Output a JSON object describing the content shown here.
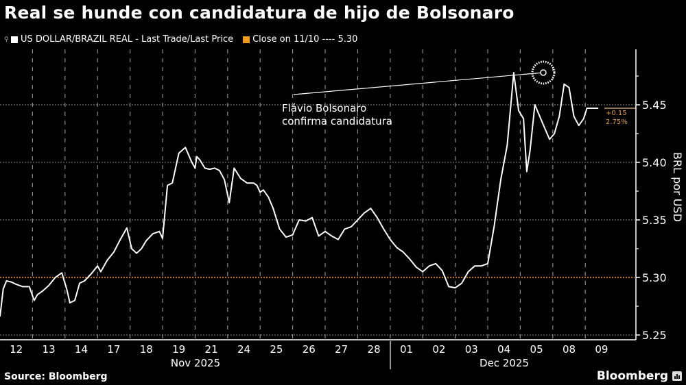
{
  "title": "Real se hunde con candidatura de hijo de Bolsonaro",
  "legend": {
    "series_label": "US DOLLAR/BRAZIL REAL - Last Trade/Last Price",
    "series_color": "#ffffff",
    "reference_label": "Close on 11/10 ---- 5.30",
    "reference_color": "#f29b1d"
  },
  "annotation": {
    "line1": "Flávio Bolsonaro",
    "line2": "confirma candidatura"
  },
  "change_badge": {
    "abs": "+0.15",
    "pct": "2.75%"
  },
  "y_axis": {
    "label": "BRL por USD",
    "ticks": [
      "5.45",
      "5.40",
      "5.35",
      "5.30",
      "5.25"
    ]
  },
  "x_axis": {
    "days": [
      "12",
      "13",
      "14",
      "17",
      "18",
      "19",
      "21",
      "24",
      "25",
      "26",
      "27",
      "28",
      "01",
      "02",
      "03",
      "04",
      "05",
      "08",
      "09"
    ],
    "months": [
      "Nov 2025",
      "Dec 2025"
    ]
  },
  "footer": {
    "source": "Source: Bloomberg",
    "brand": "Bloomberg"
  },
  "chart_data": {
    "type": "line",
    "title": "Real se hunde con candidatura de hijo de Bolsonaro",
    "xlabel": "",
    "ylabel": "BRL por USD",
    "ylim": [
      5.245,
      5.495
    ],
    "grid": true,
    "legend_position": "top-left",
    "categories": [
      "Nov 12",
      "Nov 13",
      "Nov 14",
      "Nov 17",
      "Nov 18",
      "Nov 19",
      "Nov 21",
      "Nov 24",
      "Nov 25",
      "Nov 26",
      "Nov 27",
      "Nov 28",
      "Dec 01",
      "Dec 02",
      "Dec 03",
      "Dec 04",
      "Dec 05",
      "Dec 08",
      "Dec 09"
    ],
    "series": [
      {
        "name": "US DOLLAR/BRAZIL REAL - Last Trade/Last Price",
        "x": [
          0.0,
          0.1,
          0.2,
          0.35,
          0.5,
          0.7,
          0.9,
          1.05,
          1.15,
          1.3,
          1.5,
          1.7,
          1.9,
          2.05,
          2.15,
          2.3,
          2.45,
          2.6,
          2.8,
          3.0,
          3.1,
          3.3,
          3.5,
          3.7,
          3.9,
          4.05,
          4.2,
          4.35,
          4.5,
          4.7,
          4.9,
          5.0,
          5.15,
          5.3,
          5.5,
          5.7,
          5.9,
          6.0,
          6.05,
          6.15,
          6.3,
          6.45,
          6.6,
          6.75,
          6.9,
          7.05,
          7.2,
          7.4,
          7.6,
          7.8,
          7.9,
          8.0,
          8.1,
          8.25,
          8.4,
          8.6,
          8.8,
          9.0,
          9.2,
          9.4,
          9.6,
          9.8,
          10.0,
          10.2,
          10.4,
          10.6,
          10.8,
          11.0,
          11.2,
          11.4,
          11.6,
          11.8,
          12.0,
          12.2,
          12.4,
          12.6,
          12.8,
          13.0,
          13.2,
          13.4,
          13.6,
          13.8,
          14.0,
          14.2,
          14.4,
          14.6,
          14.8,
          15.0,
          15.2,
          15.4,
          15.6,
          15.8,
          15.95,
          16.1,
          16.2,
          16.3,
          16.45,
          16.6,
          16.75,
          16.9,
          17.05,
          17.2,
          17.35,
          17.5,
          17.65,
          17.8,
          17.95,
          18.05,
          18.2,
          18.4
        ],
        "values": [
          5.266,
          5.29,
          5.297,
          5.296,
          5.294,
          5.292,
          5.292,
          5.28,
          5.285,
          5.288,
          5.293,
          5.3,
          5.304,
          5.29,
          5.278,
          5.28,
          5.295,
          5.297,
          5.303,
          5.31,
          5.305,
          5.315,
          5.322,
          5.333,
          5.343,
          5.325,
          5.321,
          5.325,
          5.332,
          5.338,
          5.34,
          5.334,
          5.38,
          5.382,
          5.408,
          5.413,
          5.4,
          5.395,
          5.405,
          5.402,
          5.395,
          5.394,
          5.395,
          5.393,
          5.385,
          5.365,
          5.395,
          5.386,
          5.382,
          5.382,
          5.38,
          5.374,
          5.376,
          5.37,
          5.36,
          5.342,
          5.335,
          5.337,
          5.35,
          5.349,
          5.352,
          5.336,
          5.34,
          5.336,
          5.333,
          5.342,
          5.344,
          5.35,
          5.356,
          5.36,
          5.352,
          5.342,
          5.333,
          5.326,
          5.322,
          5.316,
          5.309,
          5.305,
          5.31,
          5.312,
          5.306,
          5.292,
          5.291,
          5.295,
          5.305,
          5.31,
          5.31,
          5.312,
          5.345,
          5.385,
          5.415,
          5.478,
          5.445,
          5.438,
          5.392,
          5.41,
          5.45,
          5.44,
          5.43,
          5.42,
          5.425,
          5.44,
          5.468,
          5.465,
          5.44,
          5.432,
          5.438,
          5.447,
          5.447,
          5.447
        ]
      },
      {
        "name": "Close on 11/10",
        "type": "hline",
        "value": 5.3
      }
    ],
    "annotations": [
      {
        "text": "Flávio Bolsonaro confirma candidatura",
        "x": "Dec 05",
        "y": 5.478
      },
      {
        "text": "+0.15 / 2.75%",
        "y": 5.447
      }
    ]
  }
}
